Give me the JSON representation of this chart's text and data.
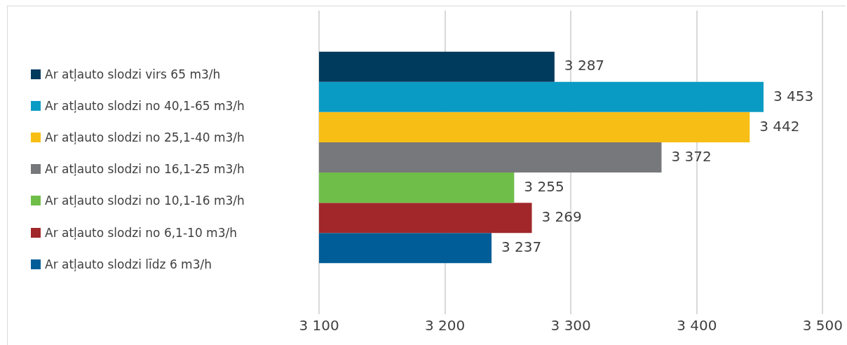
{
  "chart_data": {
    "type": "bar",
    "orientation": "horizontal",
    "categories": [
      null
    ],
    "series": [
      {
        "name": "Ar atļauto slodzi virs 65 m3/h",
        "color": "#003a5d",
        "values": [
          3287
        ],
        "value_labels": [
          "3 287"
        ]
      },
      {
        "name": "Ar atļauto slodzi no 40,1-65 m3/h",
        "color": "#0a9bc4",
        "values": [
          3453
        ],
        "value_labels": [
          "3 453"
        ]
      },
      {
        "name": "Ar atļauto slodzi no 25,1-40 m3/h",
        "color": "#f7be16",
        "values": [
          3442
        ],
        "value_labels": [
          "3 442"
        ]
      },
      {
        "name": "Ar atļauto slodzi no 16,1-25 m3/h",
        "color": "#77787b",
        "values": [
          3372
        ],
        "value_labels": [
          "3 372"
        ]
      },
      {
        "name": "Ar atļauto slodzi no 10,1-16 m3/h",
        "color": "#6fbe4a",
        "values": [
          3255
        ],
        "value_labels": [
          "3 255"
        ]
      },
      {
        "name": "Ar atļauto slodzi no 6,1-10 m3/h",
        "color": "#a1272a",
        "values": [
          3269
        ],
        "value_labels": [
          "3 269"
        ]
      },
      {
        "name": "Ar atļauto slodzi līdz 6 m3/h",
        "color": "#005d97",
        "values": [
          3237
        ],
        "value_labels": [
          "3 237"
        ]
      }
    ],
    "xlim": [
      3100,
      3500
    ],
    "xticks": [
      {
        "value": 3100,
        "label": "3 100"
      },
      {
        "value": 3200,
        "label": "3 200"
      },
      {
        "value": 3300,
        "label": "3 300"
      },
      {
        "value": 3400,
        "label": "3 400"
      },
      {
        "value": 3500,
        "label": "3 500"
      }
    ],
    "grid": "x",
    "legend": "left"
  }
}
